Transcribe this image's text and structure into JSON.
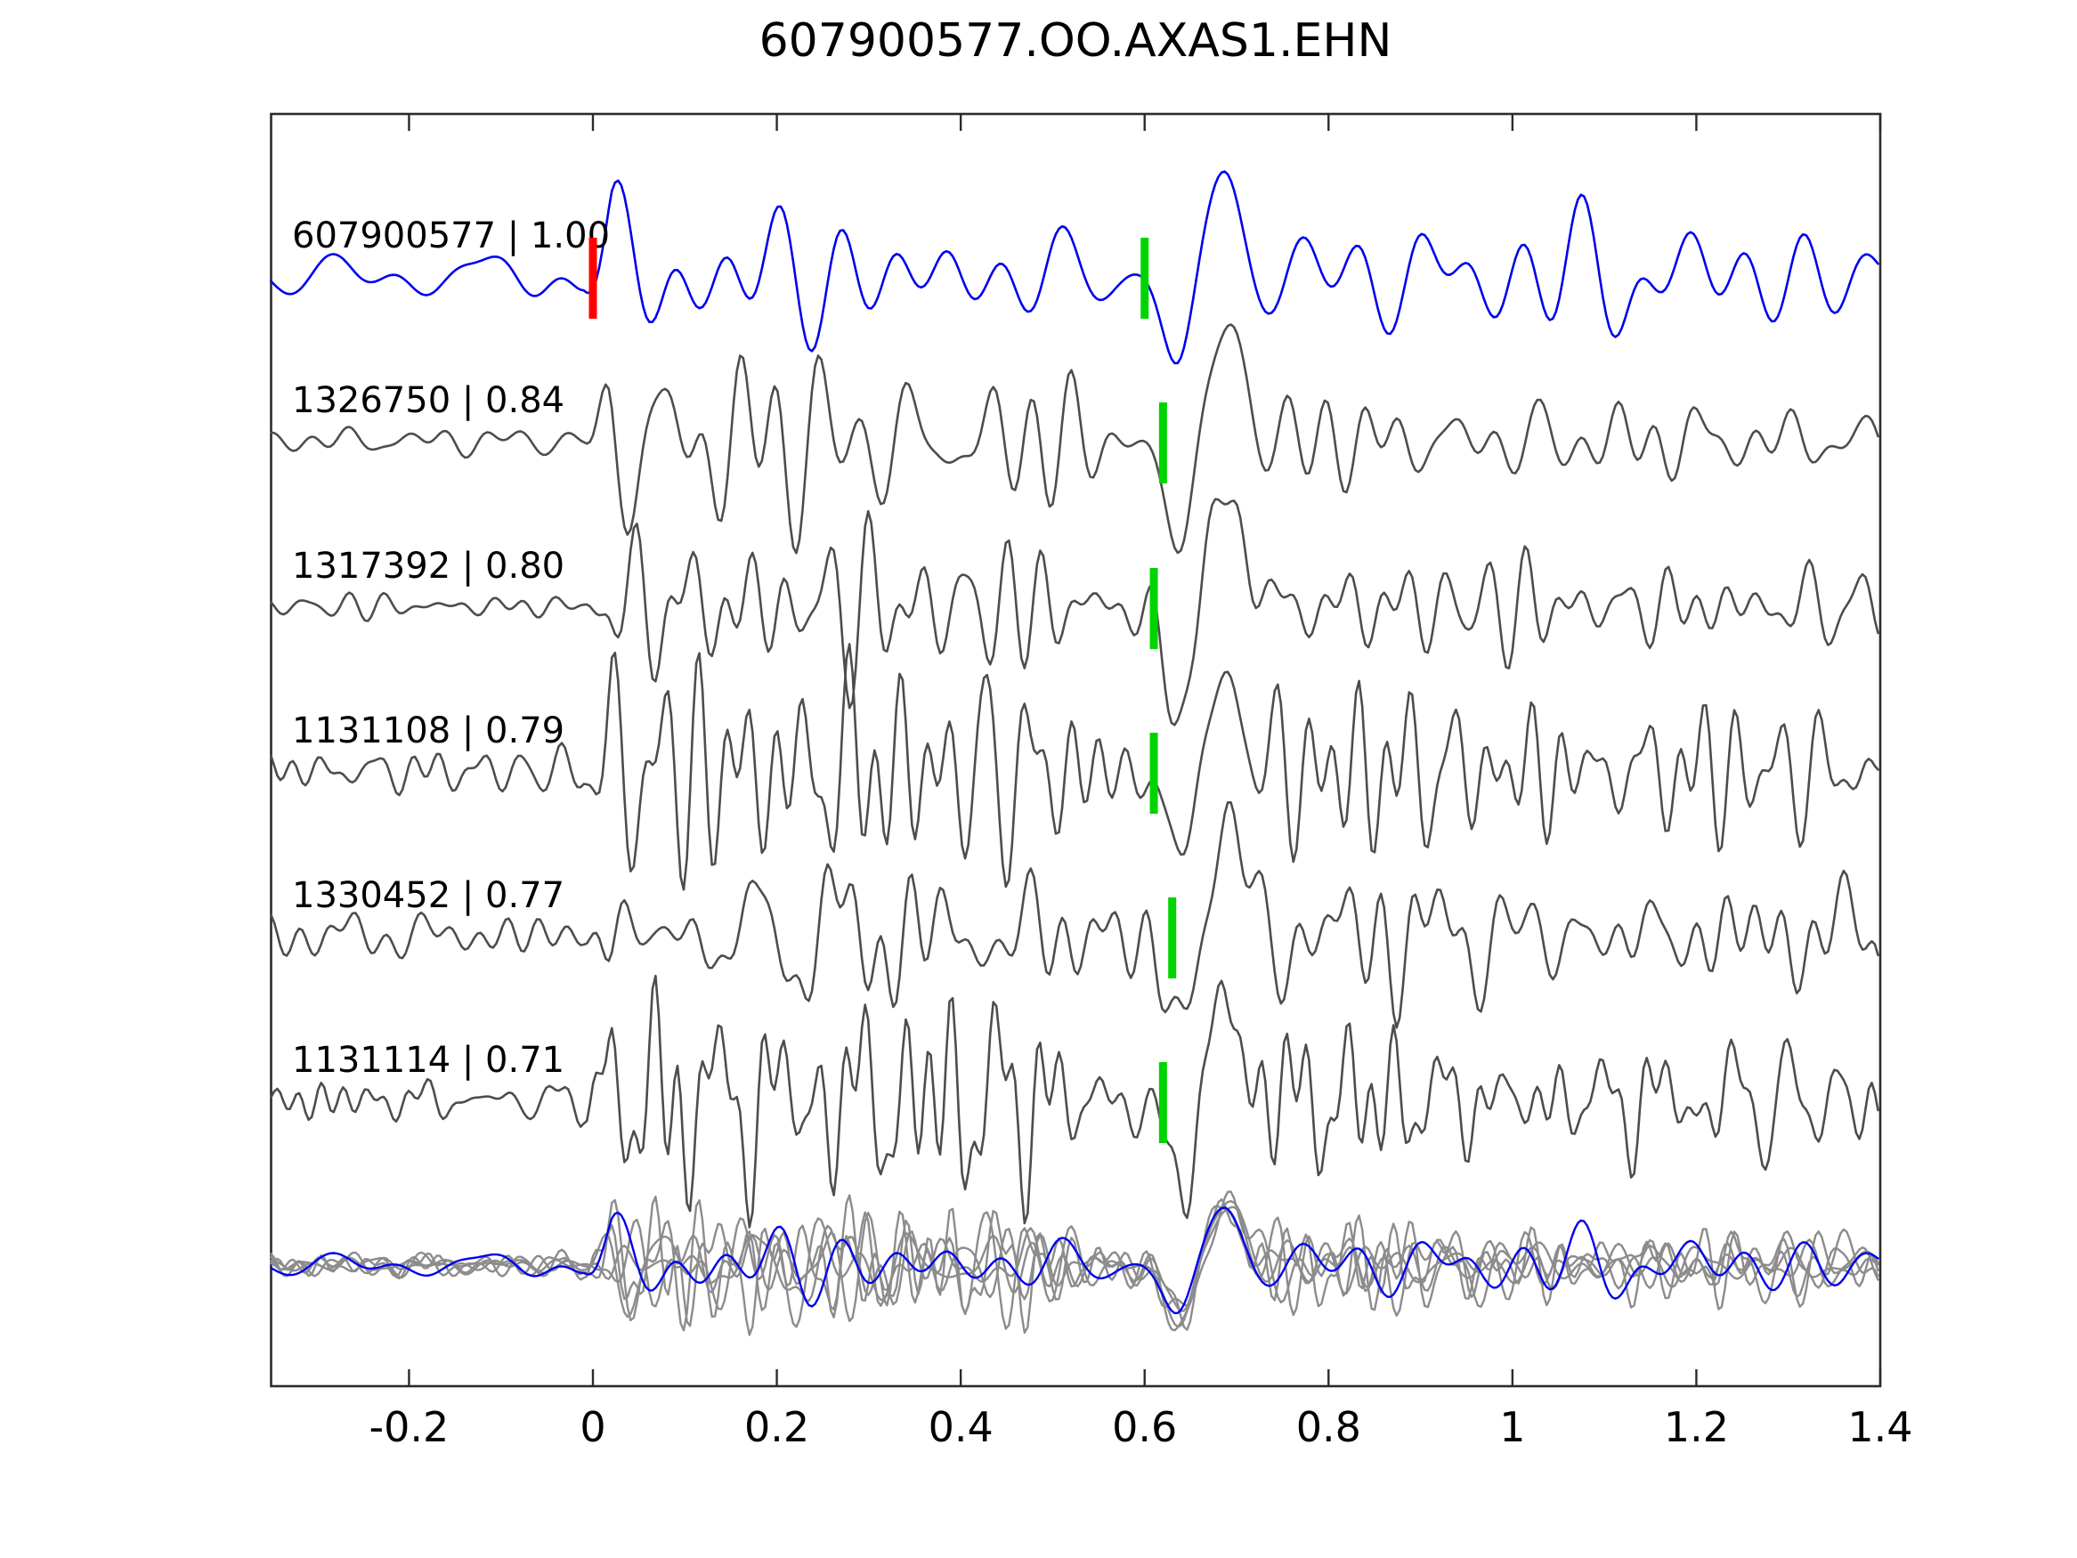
{
  "title": "607900577.OO.AXAS1.EHN",
  "colors": {
    "background": "#ffffff",
    "axis": "#2b2b2b",
    "text": "#000000",
    "template_trace": "#0000ee",
    "match_trace": "#4d4d4f",
    "overlay_gray": "#8c8c8c",
    "pick_marker": "#00d400",
    "origin_marker": "#ff0000"
  },
  "chart_data": {
    "type": "line",
    "title": "607900577.OO.AXAS1.EHN",
    "xlabel": "",
    "ylabel": "",
    "xlim": [
      -0.35,
      1.4
    ],
    "x_ticks": [
      -0.2,
      0,
      0.2,
      0.4,
      0.6,
      0.8,
      1,
      1.2,
      1.4
    ],
    "x_tick_labels": [
      "-0.2",
      "0",
      "0.2",
      "0.4",
      "0.6",
      "0.8",
      "1",
      "1.2",
      "1.4"
    ],
    "grid": false,
    "legend": "none",
    "description": "Template waveform (blue) compared with five matched detection waveforms (dark gray), stacked rows; green bars mark pick times, red bar marks template origin time 0; bottom row overlays all traces (gray) with template in blue.",
    "wavelet": {
      "trough_t": 0.636,
      "trough_w": 0.022,
      "peak_t": 0.688,
      "peak_w": 0.027
    },
    "traces": [
      {
        "id": "607900577",
        "similarity": "1.00",
        "label": "607900577 | 1.00",
        "role": "template",
        "color": "#0000ee",
        "pick_time": 0.6,
        "origin_time": 0.0,
        "seed": 101,
        "noise_freq_range": [
          5,
          24
        ],
        "wavelet_amp": 95,
        "envelope": [
          [
            -0.35,
            16
          ],
          [
            -0.01,
            16
          ],
          [
            0.02,
            50
          ],
          [
            0.33,
            52
          ],
          [
            0.5,
            42
          ],
          [
            0.57,
            28
          ],
          [
            0.68,
            28
          ],
          [
            0.75,
            46
          ],
          [
            0.95,
            50
          ],
          [
            1.15,
            44
          ],
          [
            1.4,
            40
          ]
        ]
      },
      {
        "id": "1326750",
        "similarity": "0.84",
        "label": "1326750 | 0.84",
        "role": "match",
        "color": "#4d4d4f",
        "pick_time": 0.62,
        "seed": 202,
        "noise_freq_range": [
          8,
          36
        ],
        "wavelet_amp": 115,
        "envelope": [
          [
            -0.35,
            9
          ],
          [
            -0.01,
            9
          ],
          [
            0.02,
            55
          ],
          [
            0.3,
            55
          ],
          [
            0.5,
            40
          ],
          [
            0.57,
            25
          ],
          [
            0.68,
            25
          ],
          [
            0.75,
            34
          ],
          [
            1.0,
            30
          ],
          [
            1.4,
            28
          ]
        ]
      },
      {
        "id": "1317392",
        "similarity": "0.80",
        "label": "1317392 | 0.80",
        "role": "match",
        "color": "#4d4d4f",
        "pick_time": 0.61,
        "seed": 303,
        "noise_freq_range": [
          7,
          34
        ],
        "wavelet_amp": 120,
        "envelope": [
          [
            -0.35,
            8
          ],
          [
            -0.01,
            8
          ],
          [
            0.02,
            52
          ],
          [
            0.3,
            52
          ],
          [
            0.5,
            40
          ],
          [
            0.57,
            25
          ],
          [
            0.68,
            25
          ],
          [
            0.75,
            34
          ],
          [
            1.0,
            32
          ],
          [
            1.4,
            28
          ]
        ]
      },
      {
        "id": "1131108",
        "similarity": "0.79",
        "label": "1131108 | 0.79",
        "role": "match",
        "color": "#4d4d4f",
        "pick_time": 0.61,
        "seed": 404,
        "noise_freq_range": [
          10,
          44
        ],
        "wavelet_amp": 88,
        "envelope": [
          [
            -0.35,
            18
          ],
          [
            -0.01,
            18
          ],
          [
            0.02,
            78
          ],
          [
            0.35,
            80
          ],
          [
            0.5,
            55
          ],
          [
            0.57,
            35
          ],
          [
            0.68,
            35
          ],
          [
            0.75,
            55
          ],
          [
            1.0,
            58
          ],
          [
            1.15,
            60
          ],
          [
            1.4,
            40
          ]
        ]
      },
      {
        "id": "1330452",
        "similarity": "0.77",
        "label": "1330452 | 0.77",
        "role": "match",
        "color": "#4d4d4f",
        "pick_time": 0.63,
        "seed": 505,
        "noise_freq_range": [
          8,
          38
        ],
        "wavelet_amp": 110,
        "envelope": [
          [
            -0.35,
            13
          ],
          [
            -0.01,
            13
          ],
          [
            0.02,
            55
          ],
          [
            0.3,
            55
          ],
          [
            0.5,
            42
          ],
          [
            0.57,
            30
          ],
          [
            0.68,
            30
          ],
          [
            0.75,
            45
          ],
          [
            1.0,
            42
          ],
          [
            1.4,
            38
          ]
        ]
      },
      {
        "id": "1131114",
        "similarity": "0.71",
        "label": "1131114 | 0.71",
        "role": "match",
        "color": "#4d4d4f",
        "pick_time": 0.62,
        "seed": 606,
        "noise_freq_range": [
          10,
          44
        ],
        "wavelet_amp": 92,
        "envelope": [
          [
            -0.35,
            14
          ],
          [
            -0.01,
            14
          ],
          [
            0.02,
            85
          ],
          [
            0.3,
            85
          ],
          [
            0.5,
            60
          ],
          [
            0.57,
            35
          ],
          [
            0.68,
            35
          ],
          [
            0.75,
            50
          ],
          [
            1.0,
            45
          ],
          [
            1.4,
            40
          ]
        ]
      }
    ],
    "overlay": {
      "description": "all six traces overlaid, matches in gray, template in blue",
      "scale": 0.55,
      "gray_color": "#8c8c8c"
    }
  }
}
